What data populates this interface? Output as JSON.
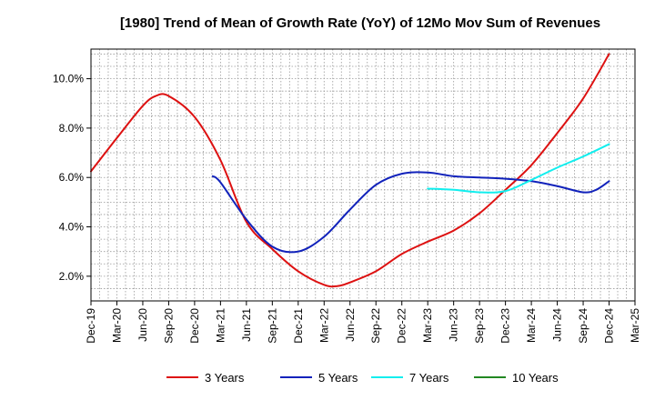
{
  "chart_data": {
    "type": "line",
    "title": "[1980]  Trend of Mean of Growth Rate (YoY) of 12Mo Mov Sum of Revenues",
    "xlabel": "",
    "ylabel": "",
    "x_ticks": [
      "Dec-19",
      "Mar-20",
      "Jun-20",
      "Sep-20",
      "Dec-20",
      "Mar-21",
      "Jun-21",
      "Sep-21",
      "Dec-21",
      "Mar-22",
      "Jun-22",
      "Sep-22",
      "Dec-22",
      "Mar-23",
      "Jun-23",
      "Sep-23",
      "Dec-23",
      "Mar-24",
      "Jun-24",
      "Sep-24",
      "Dec-24",
      "Mar-25"
    ],
    "y_ticks": [
      {
        "value": 2.0,
        "label": "2.0%"
      },
      {
        "value": 4.0,
        "label": "4.0%"
      },
      {
        "value": 6.0,
        "label": "6.0%"
      },
      {
        "value": 8.0,
        "label": "8.0%"
      },
      {
        "value": 10.0,
        "label": "10.0%"
      }
    ],
    "ylim": [
      1.0,
      11.2
    ],
    "xlim": [
      0,
      21
    ],
    "grid": true,
    "legend_position": "bottom",
    "series": [
      {
        "name": "3 Years",
        "color": "#dd1111",
        "x": [
          0,
          1,
          2,
          2.5,
          3,
          4,
          5,
          6,
          7,
          8,
          9,
          9.5,
          10,
          11,
          12,
          13,
          14,
          15,
          16,
          17,
          18,
          19,
          20
        ],
        "values": [
          6.25,
          7.6,
          8.9,
          9.3,
          9.3,
          8.45,
          6.7,
          4.2,
          3.1,
          2.2,
          1.65,
          1.6,
          1.75,
          2.2,
          2.9,
          3.4,
          3.85,
          4.55,
          5.5,
          6.5,
          7.8,
          9.2,
          11.0
        ]
      },
      {
        "name": "5 Years",
        "color": "#1122bb",
        "x": [
          4.7,
          5,
          6,
          7,
          8,
          9,
          10,
          11,
          12,
          13,
          14,
          15,
          16,
          17,
          18,
          19,
          19.5,
          20
        ],
        "values": [
          6.05,
          5.8,
          4.3,
          3.2,
          3.0,
          3.6,
          4.7,
          5.7,
          6.15,
          6.2,
          6.05,
          6.0,
          5.95,
          5.85,
          5.65,
          5.4,
          5.5,
          5.85
        ]
      },
      {
        "name": "7 Years",
        "color": "#11eeee",
        "x": [
          13,
          14,
          15,
          16,
          17,
          18,
          19,
          20
        ],
        "values": [
          5.55,
          5.5,
          5.4,
          5.45,
          5.9,
          6.4,
          6.85,
          7.35
        ]
      },
      {
        "name": "10 Years",
        "color": "#228822",
        "x": [],
        "values": []
      }
    ]
  }
}
